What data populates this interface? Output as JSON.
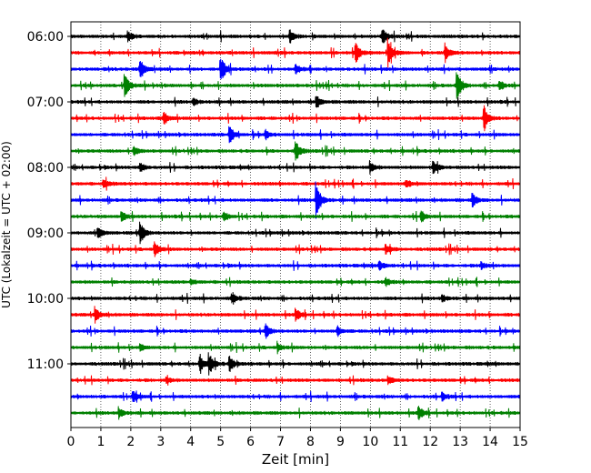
{
  "chart_data": {
    "type": "line",
    "title": "",
    "xlabel": "Zeit  [min]",
    "ylabel": "UTC (Lokalzeit = UTC + 02:00)",
    "xlim": [
      0,
      15
    ],
    "x_ticks": [
      0,
      1,
      2,
      3,
      4,
      5,
      6,
      7,
      8,
      9,
      10,
      11,
      12,
      13,
      14,
      15
    ],
    "y_time_range": [
      "06:00",
      "11:45"
    ],
    "y_tick_labels": [
      "06:00",
      "07:00",
      "08:00",
      "09:00",
      "10:00",
      "11:00"
    ],
    "x_grid": "dotted",
    "line_interval_minutes": 15,
    "trace_colors": [
      "#000000",
      "#ff0000",
      "#0000ff",
      "#008000"
    ],
    "series": [
      {
        "start": "06:00",
        "color": "#000000",
        "events": [
          {
            "x": 7.3,
            "amp": 0.35
          },
          {
            "x": 10.4,
            "amp": 0.45
          },
          {
            "x": 1.9,
            "amp": 0.25
          }
        ]
      },
      {
        "start": "06:15",
        "color": "#ff0000",
        "events": [
          {
            "x": 9.5,
            "amp": 0.55
          },
          {
            "x": 10.6,
            "amp": 0.75
          },
          {
            "x": 12.5,
            "amp": 0.5
          }
        ]
      },
      {
        "start": "06:30",
        "color": "#0000ff",
        "events": [
          {
            "x": 2.3,
            "amp": 0.55
          },
          {
            "x": 5.0,
            "amp": 0.7
          },
          {
            "x": 7.5,
            "amp": 0.25
          }
        ]
      },
      {
        "start": "06:45",
        "color": "#008000",
        "events": [
          {
            "x": 1.8,
            "amp": 0.65
          },
          {
            "x": 12.9,
            "amp": 0.7
          },
          {
            "x": 14.3,
            "amp": 0.3
          }
        ]
      },
      {
        "start": "07:00",
        "color": "#000000",
        "events": [
          {
            "x": 8.2,
            "amp": 0.3
          },
          {
            "x": 4.1,
            "amp": 0.2
          }
        ]
      },
      {
        "start": "07:15",
        "color": "#ff0000",
        "events": [
          {
            "x": 3.1,
            "amp": 0.35
          },
          {
            "x": 13.8,
            "amp": 0.7
          }
        ]
      },
      {
        "start": "07:30",
        "color": "#0000ff",
        "events": [
          {
            "x": 5.3,
            "amp": 0.45
          },
          {
            "x": 6.5,
            "amp": 0.2
          }
        ]
      },
      {
        "start": "07:45",
        "color": "#008000",
        "events": [
          {
            "x": 7.5,
            "amp": 0.6
          },
          {
            "x": 2.1,
            "amp": 0.25
          }
        ]
      },
      {
        "start": "08:00",
        "color": "#000000",
        "events": [
          {
            "x": 2.3,
            "amp": 0.25
          },
          {
            "x": 12.1,
            "amp": 0.35
          },
          {
            "x": 10.0,
            "amp": 0.25
          }
        ]
      },
      {
        "start": "08:15",
        "color": "#ff0000",
        "events": [
          {
            "x": 1.1,
            "amp": 0.25
          },
          {
            "x": 11.2,
            "amp": 0.2
          }
        ]
      },
      {
        "start": "08:30",
        "color": "#0000ff",
        "events": [
          {
            "x": 8.2,
            "amp": 0.95
          },
          {
            "x": 13.4,
            "amp": 0.35
          }
        ]
      },
      {
        "start": "08:45",
        "color": "#008000",
        "events": [
          {
            "x": 1.7,
            "amp": 0.25
          },
          {
            "x": 5.1,
            "amp": 0.25
          },
          {
            "x": 11.7,
            "amp": 0.3
          }
        ]
      },
      {
        "start": "09:00",
        "color": "#000000",
        "events": [
          {
            "x": 2.3,
            "amp": 0.6
          },
          {
            "x": 0.9,
            "amp": 0.3
          }
        ]
      },
      {
        "start": "09:15",
        "color": "#ff0000",
        "events": [
          {
            "x": 2.8,
            "amp": 0.4
          },
          {
            "x": 10.5,
            "amp": 0.25
          }
        ]
      },
      {
        "start": "09:30",
        "color": "#0000ff",
        "events": [
          {
            "x": 10.3,
            "amp": 0.25
          },
          {
            "x": 13.7,
            "amp": 0.2
          }
        ]
      },
      {
        "start": "09:45",
        "color": "#008000",
        "events": [
          {
            "x": 10.5,
            "amp": 0.2
          },
          {
            "x": 4.0,
            "amp": 0.15
          }
        ]
      },
      {
        "start": "10:00",
        "color": "#000000",
        "events": [
          {
            "x": 5.4,
            "amp": 0.25
          },
          {
            "x": 12.4,
            "amp": 0.2
          }
        ]
      },
      {
        "start": "10:15",
        "color": "#ff0000",
        "events": [
          {
            "x": 0.8,
            "amp": 0.4
          },
          {
            "x": 7.5,
            "amp": 0.3
          }
        ]
      },
      {
        "start": "10:30",
        "color": "#0000ff",
        "events": [
          {
            "x": 6.5,
            "amp": 0.35
          },
          {
            "x": 8.9,
            "amp": 0.25
          }
        ]
      },
      {
        "start": "10:45",
        "color": "#008000",
        "events": [
          {
            "x": 6.9,
            "amp": 0.2
          },
          {
            "x": 2.3,
            "amp": 0.15
          }
        ]
      },
      {
        "start": "11:00",
        "color": "#000000",
        "events": [
          {
            "x": 4.3,
            "amp": 0.4
          },
          {
            "x": 4.6,
            "amp": 0.55
          },
          {
            "x": 5.3,
            "amp": 0.4
          }
        ]
      },
      {
        "start": "11:15",
        "color": "#ff0000",
        "events": [
          {
            "x": 10.6,
            "amp": 0.2
          },
          {
            "x": 3.2,
            "amp": 0.15
          }
        ]
      },
      {
        "start": "11:30",
        "color": "#0000ff",
        "events": [
          {
            "x": 2.1,
            "amp": 0.25
          },
          {
            "x": 12.4,
            "amp": 0.2
          }
        ]
      },
      {
        "start": "11:45",
        "color": "#008000",
        "events": [
          {
            "x": 1.6,
            "amp": 0.3
          },
          {
            "x": 11.6,
            "amp": 0.35
          }
        ]
      }
    ]
  }
}
